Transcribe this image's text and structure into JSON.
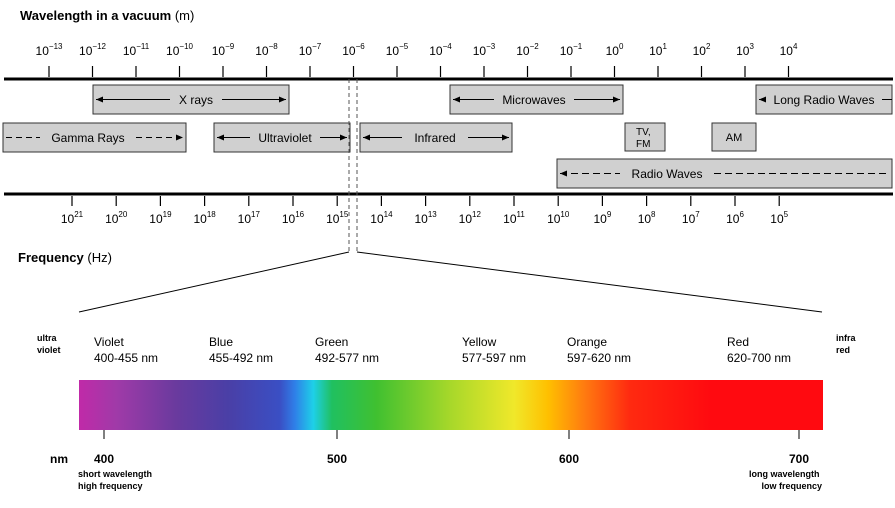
{
  "wavelength_heading": {
    "bold": "Wavelength in a vacuum",
    "unit": " (m)"
  },
  "frequency_heading": {
    "bold": "Frequency",
    "unit": " (Hz)"
  },
  "wavelength_ticks": [
    {
      "base": "10",
      "exp": "−13"
    },
    {
      "base": "10",
      "exp": "−12"
    },
    {
      "base": "10",
      "exp": "−11"
    },
    {
      "base": "10",
      "exp": "−10"
    },
    {
      "base": "10",
      "exp": "−9"
    },
    {
      "base": "10",
      "exp": "−8"
    },
    {
      "base": "10",
      "exp": "−7"
    },
    {
      "base": "10",
      "exp": "−6"
    },
    {
      "base": "10",
      "exp": "−5"
    },
    {
      "base": "10",
      "exp": "−4"
    },
    {
      "base": "10",
      "exp": "−3"
    },
    {
      "base": "10",
      "exp": "−2"
    },
    {
      "base": "10",
      "exp": "−1"
    },
    {
      "base": "10",
      "exp": "0"
    },
    {
      "base": "10",
      "exp": "1"
    },
    {
      "base": "10",
      "exp": "2"
    },
    {
      "base": "10",
      "exp": "3"
    },
    {
      "base": "10",
      "exp": "4"
    }
  ],
  "frequency_ticks": [
    {
      "base": "10",
      "exp": "21"
    },
    {
      "base": "10",
      "exp": "20"
    },
    {
      "base": "10",
      "exp": "19"
    },
    {
      "base": "10",
      "exp": "18"
    },
    {
      "base": "10",
      "exp": "17"
    },
    {
      "base": "10",
      "exp": "16"
    },
    {
      "base": "10",
      "exp": "15"
    },
    {
      "base": "10",
      "exp": "14"
    },
    {
      "base": "10",
      "exp": "13"
    },
    {
      "base": "10",
      "exp": "12"
    },
    {
      "base": "10",
      "exp": "11"
    },
    {
      "base": "10",
      "exp": "10"
    },
    {
      "base": "10",
      "exp": "9"
    },
    {
      "base": "10",
      "exp": "8"
    },
    {
      "base": "10",
      "exp": "7"
    },
    {
      "base": "10",
      "exp": "6"
    },
    {
      "base": "10",
      "exp": "5"
    }
  ],
  "bands": {
    "xrays": "X rays",
    "microwaves": "Microwaves",
    "long_radio": "Long Radio Waves",
    "gamma": "Gamma Rays",
    "ultraviolet": "Ultraviolet",
    "infrared": "Infrared",
    "tvfm_line1": "TV,",
    "tvfm_line2": "FM",
    "am": "AM",
    "radio": "Radio Waves"
  },
  "visible": {
    "left_edge": [
      "ultra",
      "violet"
    ],
    "right_edge": [
      "infra",
      "red"
    ],
    "colors": [
      {
        "name": "Violet",
        "range": "400-455 nm"
      },
      {
        "name": "Blue",
        "range": "455-492 nm"
      },
      {
        "name": "Green",
        "range": "492-577 nm"
      },
      {
        "name": "Yellow",
        "range": "577-597 nm"
      },
      {
        "name": "Orange",
        "range": "597-620 nm"
      },
      {
        "name": "Red",
        "range": "620-700 nm"
      }
    ],
    "nm_label": "nm",
    "nm_ticks": [
      "400",
      "500",
      "600",
      "700"
    ],
    "short_note": [
      "short wavelength",
      "high frequency"
    ],
    "long_note": [
      "long wavelength",
      "low frequency"
    ]
  }
}
